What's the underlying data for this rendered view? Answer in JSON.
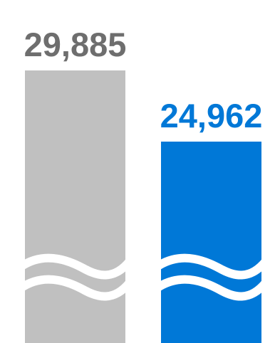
{
  "chart_data": {
    "type": "bar",
    "title": "",
    "xlabel": "",
    "ylabel": "",
    "ylim": [
      0,
      29885
    ],
    "grid": false,
    "axis_break": true,
    "categories": [
      "",
      ""
    ],
    "values": [
      29885,
      24962
    ],
    "data_labels": [
      "29,885",
      "24,962"
    ],
    "colors": [
      "#c0c0c0",
      "#0078d7"
    ],
    "label_colors": [
      "#6e6e6e",
      "#0078d7"
    ]
  }
}
